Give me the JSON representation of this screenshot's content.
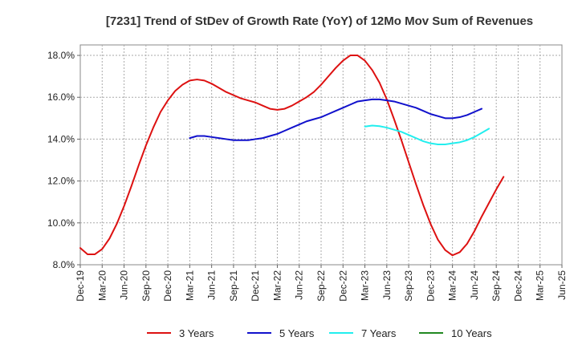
{
  "chart_data": {
    "type": "line",
    "title": "[7231]  Trend of StDev of Growth Rate (YoY) of 12Mo Mov Sum of Revenues",
    "xlabel": "",
    "ylabel": "",
    "x_tick_labels": [
      "Dec-19",
      "Mar-20",
      "Jun-20",
      "Sep-20",
      "Dec-20",
      "Mar-21",
      "Jun-21",
      "Sep-21",
      "Dec-21",
      "Mar-22",
      "Jun-22",
      "Sep-22",
      "Dec-22",
      "Mar-23",
      "Jun-23",
      "Sep-23",
      "Dec-23",
      "Mar-24",
      "Jun-24",
      "Sep-24",
      "Dec-24",
      "Mar-25",
      "Jun-25"
    ],
    "y_tick_labels": [
      "8.0%",
      "10.0%",
      "12.0%",
      "14.0%",
      "16.0%",
      "18.0%"
    ],
    "ylim": [
      8.0,
      18.5
    ],
    "y_ticks": [
      8,
      10,
      12,
      14,
      16,
      18
    ],
    "grid": true,
    "legend_position": "bottom",
    "series": [
      {
        "name": "3 Years",
        "color": "#dd1111",
        "start_month_index": 0,
        "values": [
          8.8,
          8.5,
          8.5,
          8.75,
          9.25,
          9.95,
          10.8,
          11.75,
          12.75,
          13.7,
          14.55,
          15.3,
          15.85,
          16.3,
          16.6,
          16.8,
          16.85,
          16.8,
          16.65,
          16.45,
          16.25,
          16.1,
          15.95,
          15.85,
          15.75,
          15.6,
          15.45,
          15.4,
          15.45,
          15.6,
          15.8,
          16.0,
          16.25,
          16.6,
          17.0,
          17.4,
          17.75,
          18.0,
          18.0,
          17.75,
          17.3,
          16.7,
          15.9,
          14.95,
          13.95,
          12.9,
          11.85,
          10.85,
          9.95,
          9.2,
          8.7,
          8.45,
          8.6,
          9.0,
          9.6,
          10.3,
          10.95,
          11.6,
          12.2
        ]
      },
      {
        "name": "5 Years",
        "color": "#1111cc",
        "start_month_index": 15,
        "values": [
          14.05,
          14.15,
          14.15,
          14.1,
          14.05,
          14.0,
          13.95,
          13.95,
          13.95,
          14.0,
          14.05,
          14.15,
          14.25,
          14.4,
          14.55,
          14.7,
          14.85,
          14.95,
          15.05,
          15.2,
          15.35,
          15.5,
          15.65,
          15.8,
          15.85,
          15.9,
          15.9,
          15.85,
          15.8,
          15.7,
          15.6,
          15.5,
          15.35,
          15.2,
          15.1,
          15.0,
          15.0,
          15.05,
          15.15,
          15.3,
          15.45
        ]
      },
      {
        "name": "7 Years",
        "color": "#22eeee",
        "start_month_index": 39,
        "values": [
          14.6,
          14.65,
          14.62,
          14.55,
          14.45,
          14.35,
          14.2,
          14.05,
          13.9,
          13.8,
          13.75,
          13.75,
          13.8,
          13.85,
          13.95,
          14.1,
          14.3,
          14.5
        ]
      },
      {
        "name": "10 Years",
        "color": "#228822",
        "start_month_index": 0,
        "values": []
      }
    ]
  }
}
